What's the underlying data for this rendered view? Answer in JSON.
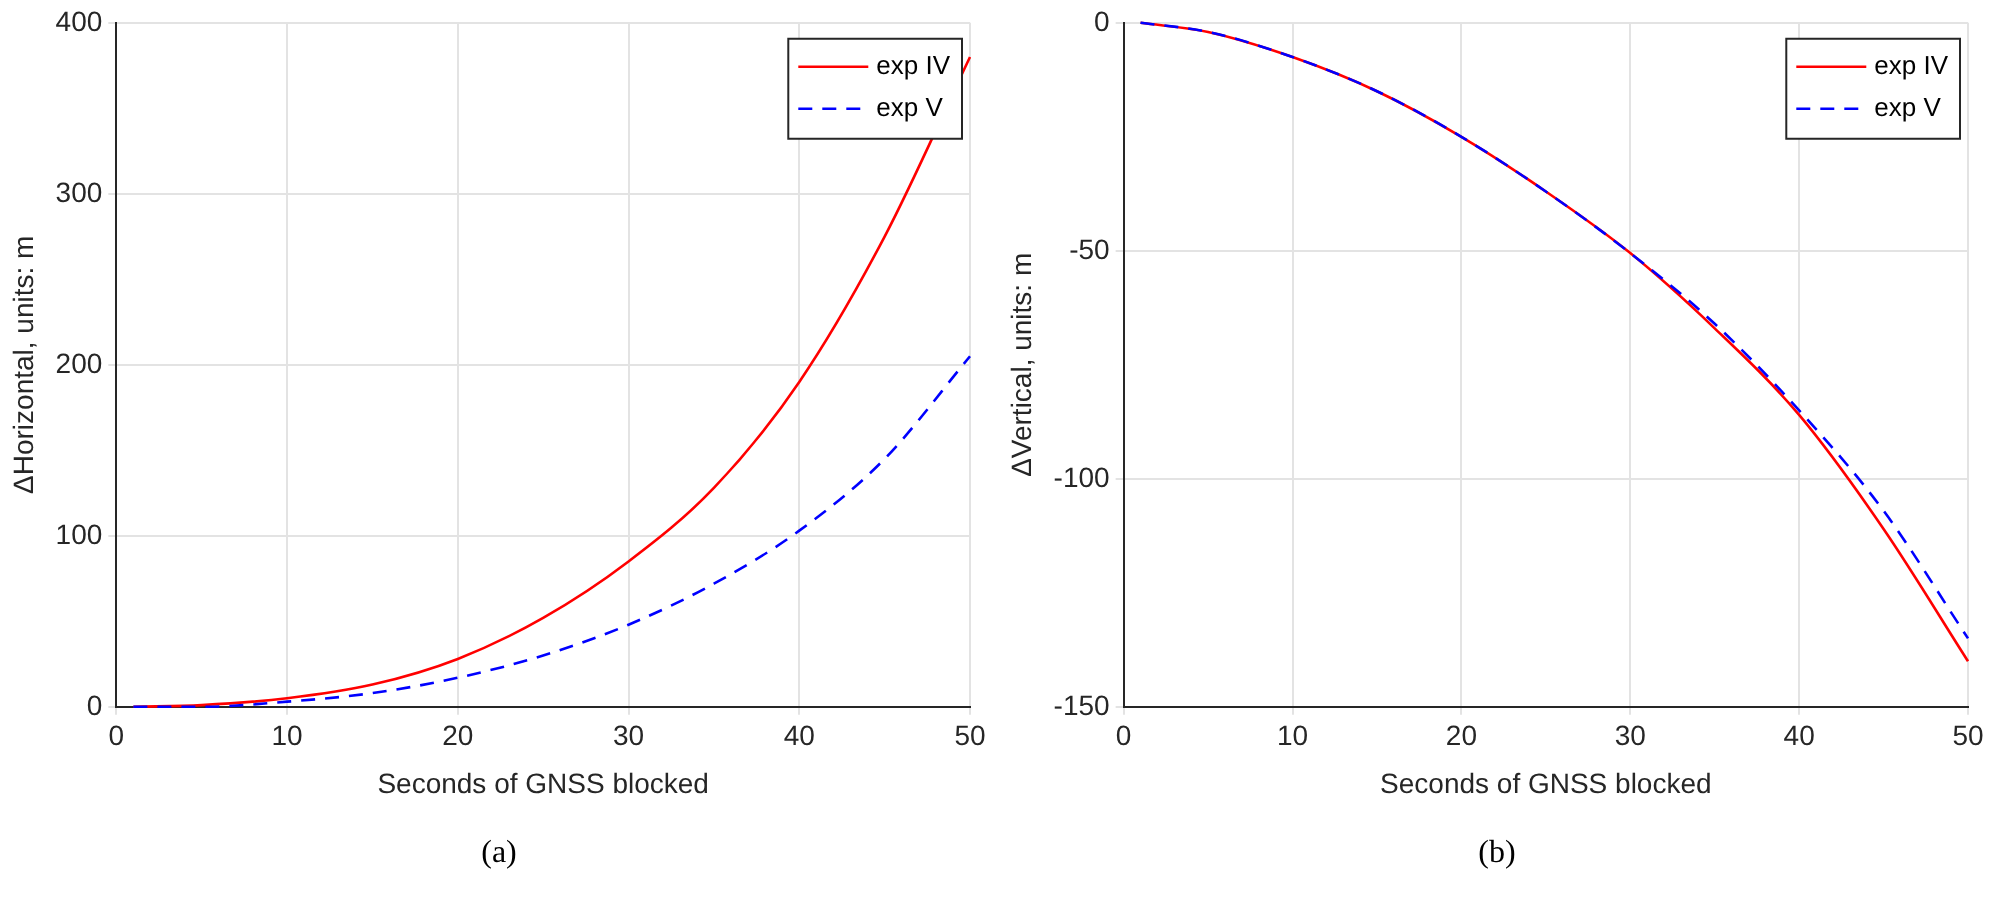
{
  "chart_data": [
    {
      "type": "line",
      "xlabel": "Seconds of GNSS blocked",
      "ylabel": "ΔHorizontal, units: m",
      "annotations": [
        "(a)"
      ],
      "xlim": [
        0,
        50
      ],
      "xticks": [
        0,
        10,
        20,
        30,
        40,
        50
      ],
      "ylim": [
        0,
        400
      ],
      "yticks": [
        0,
        100,
        200,
        300,
        400
      ],
      "grid": true,
      "legend": "top right",
      "x": [
        1,
        5,
        10,
        15,
        20,
        25,
        30,
        35,
        40,
        45,
        50
      ],
      "series": [
        {
          "name": "exp IV",
          "color": "#ff0000",
          "line_style": "solid",
          "values": [
            0,
            1,
            5,
            13,
            28,
            52,
            85,
            128,
            190,
            275,
            380
          ]
        },
        {
          "name": "exp V",
          "color": "#0000ff",
          "line_style": "dashed",
          "values": [
            0,
            0,
            3,
            8,
            17,
            30,
            48,
            72,
            103,
            145,
            205
          ]
        }
      ]
    },
    {
      "type": "line",
      "xlabel": "Seconds of GNSS blocked",
      "ylabel": "ΔVertical, units: m",
      "annotations": [
        "(b)"
      ],
      "xlim": [
        0,
        50
      ],
      "xticks": [
        0,
        10,
        20,
        30,
        40,
        50
      ],
      "ylim": [
        -150,
        0
      ],
      "yticks": [
        -150,
        -100,
        -50,
        0
      ],
      "grid": true,
      "legend": "top right",
      "x": [
        1,
        5,
        10,
        15,
        20,
        25,
        30,
        35,
        40,
        45,
        50
      ],
      "series": [
        {
          "name": "exp IV",
          "color": "#ff0000",
          "line_style": "solid",
          "values": [
            0,
            -2,
            -7.5,
            -15,
            -25,
            -37,
            -50.5,
            -67,
            -86,
            -111,
            -140
          ]
        },
        {
          "name": "exp V",
          "color": "#0000ff",
          "line_style": "dashed",
          "values": [
            0,
            -2,
            -7.5,
            -15,
            -25,
            -37,
            -50.5,
            -66,
            -85,
            -107,
            -135
          ]
        }
      ]
    }
  ]
}
